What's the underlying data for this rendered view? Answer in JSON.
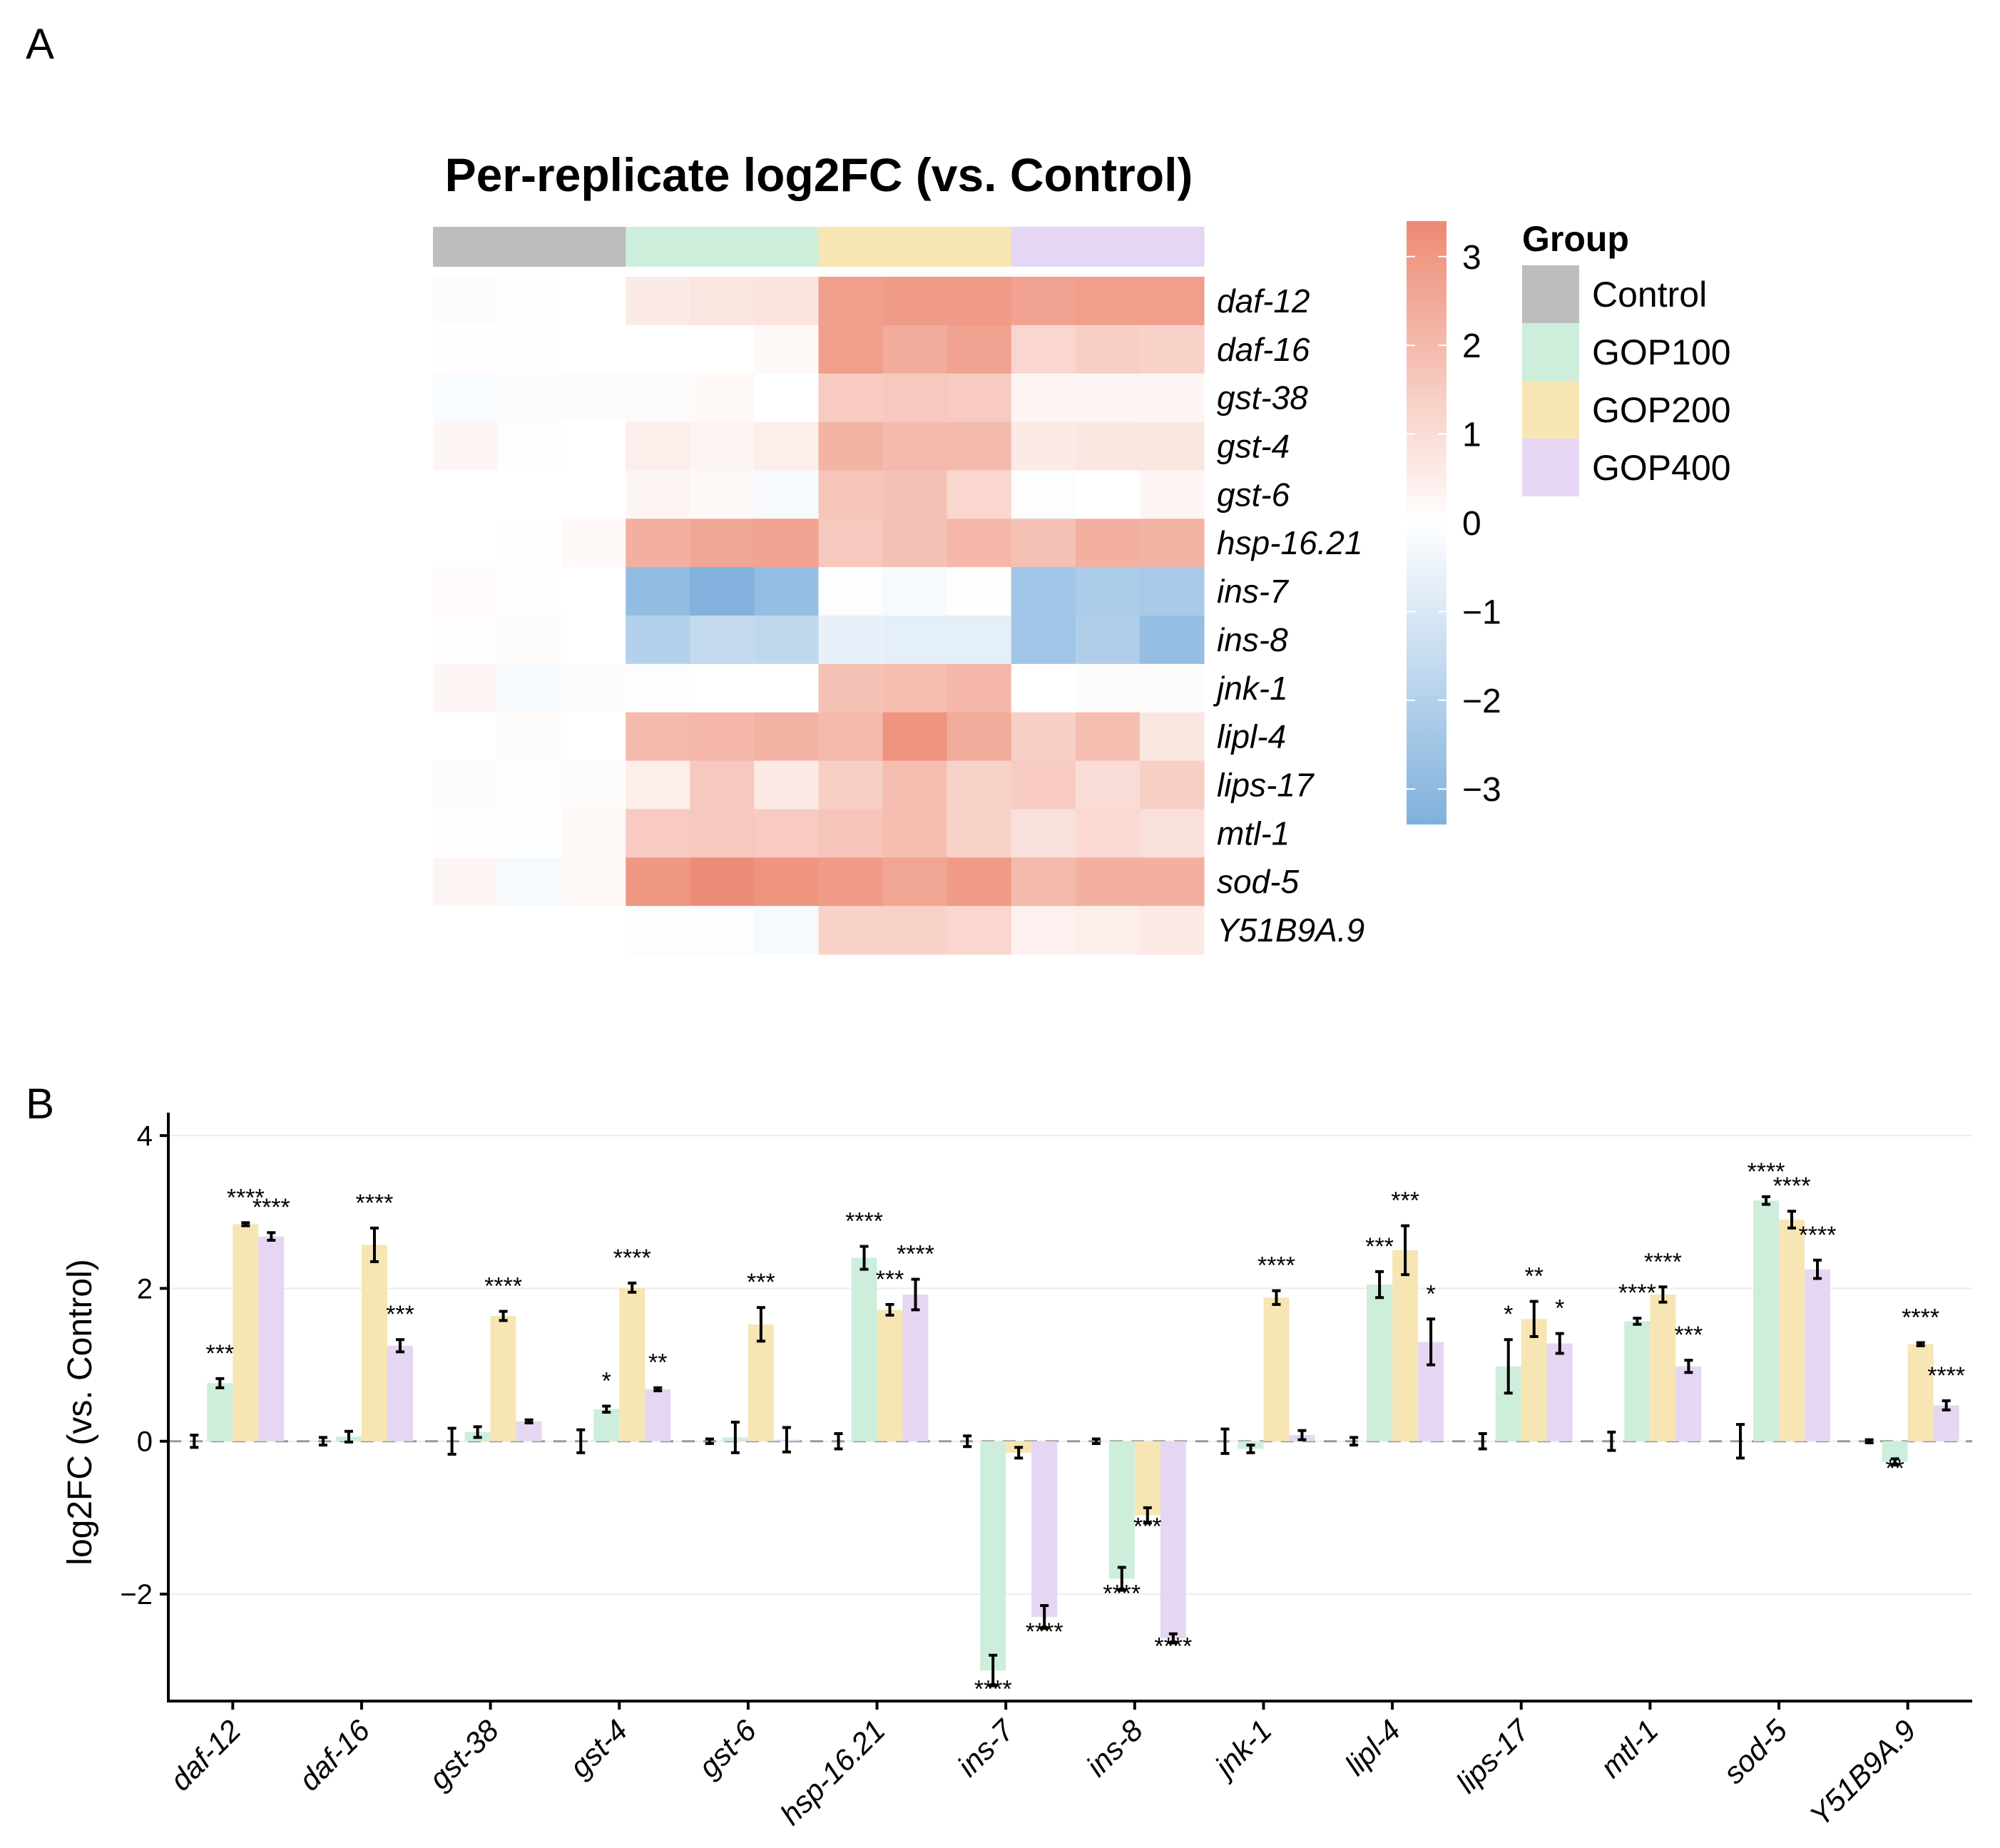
{
  "panels": {
    "a": "A",
    "b": "B"
  },
  "chart_data": [
    {
      "type": "heatmap",
      "title": "Per-replicate log2FC (vs. Control)",
      "columns_per_group": 3,
      "groups": [
        "Control",
        "GOP100",
        "GOP200",
        "GOP400"
      ],
      "group_colors": [
        "#bdbdbd",
        "#cdeedb",
        "#f7e6b3",
        "#e5d7f3"
      ],
      "rows": [
        "daf-12",
        "daf-16",
        "gst-38",
        "gst-4",
        "gst-6",
        "hsp-16.21",
        "ins-7",
        "ins-8",
        "jnk-1",
        "lipl-4",
        "lips-17",
        "mtl-1",
        "sod-5",
        "Y51B9A.9"
      ],
      "values": [
        [
          0.1,
          -0.05,
          0.0,
          0.6,
          0.7,
          0.8,
          2.8,
          2.9,
          2.9,
          2.7,
          2.8,
          2.8
        ],
        [
          0.05,
          -0.05,
          0.0,
          0.0,
          0.0,
          0.2,
          2.8,
          2.4,
          2.7,
          1.2,
          1.4,
          1.3
        ],
        [
          -0.15,
          0.1,
          0.1,
          0.1,
          0.2,
          0.0,
          1.5,
          1.6,
          1.5,
          0.3,
          0.3,
          0.25
        ],
        [
          0.25,
          -0.1,
          0.0,
          0.5,
          0.3,
          0.5,
          2.2,
          2.0,
          2.0,
          0.6,
          0.7,
          0.7
        ],
        [
          0.0,
          0.0,
          0.0,
          0.3,
          0.2,
          -0.2,
          1.7,
          1.8,
          1.2,
          -0.1,
          0.0,
          0.3
        ],
        [
          0.0,
          -0.05,
          0.2,
          2.3,
          2.6,
          2.7,
          1.6,
          1.8,
          2.1,
          1.8,
          2.3,
          2.2
        ],
        [
          0.15,
          -0.05,
          0.0,
          -2.9,
          -3.3,
          -2.8,
          -0.1,
          -0.2,
          0.05,
          -2.5,
          -2.2,
          -2.3
        ],
        [
          0.05,
          0.1,
          0.0,
          -2.0,
          -1.6,
          -1.7,
          -0.6,
          -0.7,
          -0.7,
          -2.5,
          -2.1,
          -2.8
        ],
        [
          0.25,
          -0.2,
          0.1,
          -0.1,
          0.0,
          0.0,
          1.8,
          1.9,
          2.1,
          0.0,
          0.1,
          0.1
        ],
        [
          0.0,
          0.1,
          0.0,
          2.0,
          2.1,
          2.2,
          2.0,
          3.1,
          2.4,
          1.4,
          1.9,
          0.7
        ],
        [
          0.1,
          -0.1,
          0.1,
          0.5,
          1.6,
          0.6,
          1.4,
          1.9,
          1.3,
          1.5,
          1.0,
          1.4
        ],
        [
          0.05,
          -0.05,
          0.2,
          1.5,
          1.6,
          1.5,
          1.7,
          1.9,
          1.3,
          0.9,
          1.1,
          0.9
        ],
        [
          0.3,
          -0.2,
          0.2,
          3.0,
          3.3,
          3.1,
          2.9,
          2.6,
          2.9,
          2.0,
          2.3,
          2.3
        ],
        [
          0.0,
          0.0,
          0.0,
          -0.1,
          -0.1,
          -0.2,
          1.3,
          1.3,
          1.2,
          0.4,
          0.5,
          0.6
        ]
      ],
      "color_scale": {
        "min": -3.4,
        "max": 3.4,
        "low": "#7fb0dd",
        "mid": "#ffffff",
        "high": "#ed8a73",
        "ticks": [
          3,
          2,
          1,
          0,
          -1,
          -2,
          -3
        ],
        "tick_labels": [
          "3",
          "2",
          "1",
          "0",
          "−1",
          "−2",
          "−3"
        ]
      },
      "legend": {
        "title": "Group",
        "placement": "right"
      }
    },
    {
      "type": "bar",
      "ylabel": "log2FC (vs. Control)",
      "xlabel": "",
      "ylim": [
        -3.4,
        4.3
      ],
      "yticks": [
        -2,
        0,
        2,
        4
      ],
      "ytick_labels": [
        "−2",
        "0",
        "2",
        "4"
      ],
      "grid": true,
      "reference_line": 0,
      "categories": [
        "daf-12",
        "daf-16",
        "gst-38",
        "gst-4",
        "gst-6",
        "hsp-16.21",
        "ins-7",
        "ins-8",
        "jnk-1",
        "lipl-4",
        "lips-17",
        "mtl-1",
        "sod-5",
        "Y51B9A.9"
      ],
      "series": [
        {
          "name": "Control",
          "color": "#bdbdbd",
          "values": [
            0,
            0,
            0,
            0,
            0,
            0,
            0,
            0,
            0,
            0,
            0,
            0,
            0,
            0
          ],
          "errors": [
            0.08,
            0.05,
            0.17,
            0.15,
            0.03,
            0.1,
            0.07,
            0.03,
            0.16,
            0.05,
            0.1,
            0.12,
            0.22,
            0.02
          ],
          "sig": [
            "",
            "",
            "",
            "",
            "",
            "",
            "",
            "",
            "",
            "",
            "",
            "",
            "",
            ""
          ]
        },
        {
          "name": "GOP100",
          "color": "#cdeedb",
          "values": [
            0.76,
            0.06,
            0.12,
            0.42,
            0.05,
            2.4,
            -3.0,
            -1.8,
            -0.1,
            2.05,
            0.98,
            1.57,
            3.15,
            -0.27
          ],
          "errors": [
            0.06,
            0.07,
            0.07,
            0.04,
            0.2,
            0.15,
            0.2,
            0.15,
            0.05,
            0.17,
            0.35,
            0.04,
            0.05,
            0.04
          ],
          "sig": [
            "***",
            "",
            "",
            "*",
            "",
            "****",
            "****",
            "****",
            "",
            "***",
            "*",
            "****",
            "****",
            "**"
          ]
        },
        {
          "name": "GOP200",
          "color": "#f7e6b3",
          "values": [
            2.84,
            2.57,
            1.64,
            2.01,
            1.53,
            1.72,
            -0.15,
            -0.97,
            1.88,
            2.5,
            1.6,
            1.92,
            2.9,
            1.27
          ],
          "errors": [
            0.02,
            0.22,
            0.06,
            0.06,
            0.22,
            0.07,
            0.07,
            0.1,
            0.09,
            0.32,
            0.23,
            0.1,
            0.11,
            0.02
          ],
          "sig": [
            "****",
            "****",
            "****",
            "****",
            "***",
            "***",
            "",
            "***",
            "****",
            "***",
            "**",
            "****",
            "****",
            "****"
          ]
        },
        {
          "name": "GOP400",
          "color": "#e5d7f3",
          "values": [
            2.68,
            1.25,
            0.26,
            0.68,
            0.02,
            1.92,
            -2.3,
            -2.58,
            0.08,
            1.3,
            1.28,
            0.98,
            2.25,
            0.47
          ],
          "errors": [
            0.05,
            0.08,
            0.02,
            0.02,
            0.16,
            0.2,
            0.15,
            0.06,
            0.06,
            0.3,
            0.13,
            0.08,
            0.12,
            0.06
          ],
          "sig": [
            "****",
            "***",
            "",
            "**",
            "",
            "****",
            "****",
            "****",
            "",
            "*",
            "*",
            "***",
            "****",
            "****"
          ]
        }
      ]
    }
  ]
}
